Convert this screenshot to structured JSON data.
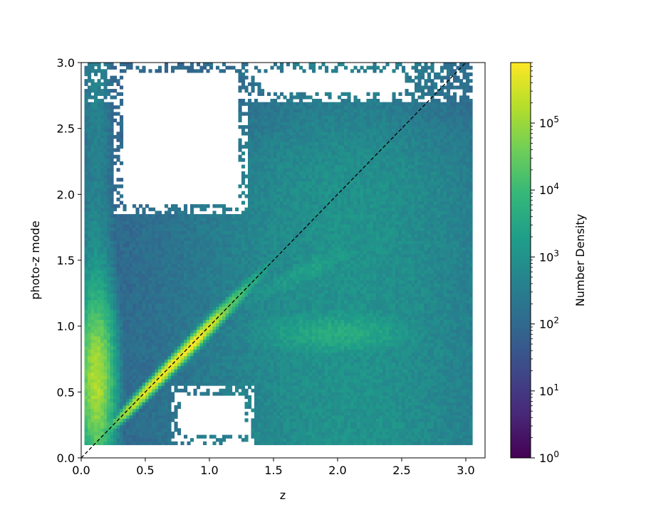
{
  "chart_data": {
    "type": "heatmap",
    "subtype": "2d-histogram",
    "title": "",
    "xlabel": "z",
    "ylabel": "photo-z mode",
    "xlim": [
      0.0,
      3.15
    ],
    "ylim": [
      0.0,
      3.0
    ],
    "x_ticks": [
      0.0,
      0.5,
      1.0,
      1.5,
      2.0,
      2.5,
      3.0
    ],
    "x_tick_labels": [
      "0.0",
      "0.5",
      "1.0",
      "1.5",
      "2.0",
      "2.5",
      "3.0"
    ],
    "y_ticks": [
      0.0,
      0.5,
      1.0,
      1.5,
      2.0,
      2.5,
      3.0
    ],
    "y_tick_labels": [
      "0.0",
      "0.5",
      "1.0",
      "1.5",
      "2.0",
      "2.5",
      "3.0"
    ],
    "grid": false,
    "colormap": "viridis",
    "color_scale": "log",
    "colorbar": {
      "label": "Number Density",
      "range": [
        1,
        800000
      ],
      "ticks": [
        1,
        10,
        100,
        1000,
        10000,
        100000
      ],
      "tick_base": "10",
      "tick_exponents": [
        "0",
        "1",
        "2",
        "3",
        "4",
        "5"
      ],
      "position": "right"
    },
    "reference_line": {
      "style": "dashed",
      "color": "#000000",
      "x": [
        0.0,
        3.15
      ],
      "y": [
        0.0,
        3.15
      ],
      "description": "one-to-one line z = photo-z"
    },
    "bins": {
      "x_range": [
        0.025,
        3.05
      ],
      "y_range": [
        0.1,
        3.0
      ],
      "bin_width": 0.025
    },
    "density_features": [
      {
        "feature": "diagonal ridge peak",
        "x": [
          0.4,
          1.2
        ],
        "y_along": "x",
        "density": 800000
      },
      {
        "feature": "low-z plateau",
        "x": [
          0.05,
          0.4
        ],
        "y": [
          0.1,
          1.4
        ],
        "density": 10000
      },
      {
        "feature": "high-z spread",
        "x": [
          1.3,
          3.05
        ],
        "y": [
          0.1,
          2.6
        ],
        "density": 3000
      },
      {
        "feature": "secondary ridge",
        "x": [
          1.5,
          2.6
        ],
        "y": [
          0.8,
          1.1
        ],
        "density": 20000
      }
    ],
    "empty_regions": [
      {
        "x": [
          0.7,
          1.35
        ],
        "y": [
          0.1,
          0.55
        ]
      },
      {
        "x": [
          0.25,
          1.3
        ],
        "y": [
          1.85,
          3.0
        ]
      },
      {
        "x": [
          1.35,
          2.6
        ],
        "y": [
          2.7,
          3.0
        ]
      }
    ]
  },
  "colors": {
    "viridis": [
      "#440154",
      "#482878",
      "#3e4989",
      "#31688e",
      "#26828e",
      "#1f9e89",
      "#35b779",
      "#6ece58",
      "#b5de2b",
      "#fde725"
    ],
    "reference_line": "#000000"
  }
}
